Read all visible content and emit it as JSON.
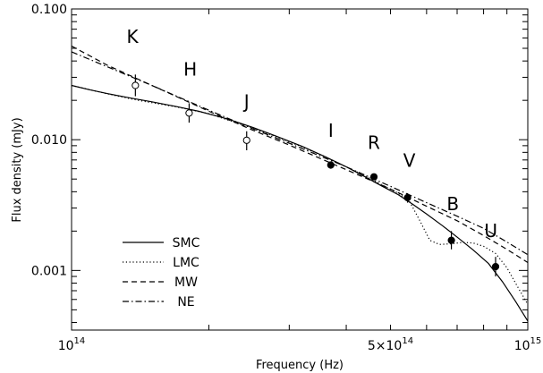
{
  "chart_data": {
    "type": "line",
    "title": "",
    "xlabel": "Frequency (Hz)",
    "ylabel": "Flux density (mJy)",
    "x_scale": "log",
    "y_scale": "log",
    "xlim": [
      100000000000000.0,
      1000000000000000.0
    ],
    "ylim": [
      0.00035,
      0.1
    ],
    "x_ticks": [
      {
        "value": 100000000000000.0,
        "base": "10",
        "exp": "14"
      },
      {
        "value": 500000000000000.0,
        "base": "5×10",
        "exp": "14"
      },
      {
        "value": 1000000000000000.0,
        "base": "10",
        "exp": "15"
      }
    ],
    "y_ticks": [
      {
        "value": 0.001,
        "label": "0.001"
      },
      {
        "value": 0.01,
        "label": "0.010"
      },
      {
        "value": 0.1,
        "label": "0.100"
      }
    ],
    "grid": false,
    "legend": {
      "placement": "bottom-left",
      "entries": [
        {
          "name": "SMC",
          "style": "solid"
        },
        {
          "name": "LMC",
          "style": "dotted"
        },
        {
          "name": "MW",
          "style": "dashed"
        },
        {
          "name": "NE",
          "style": "dashdot"
        }
      ]
    },
    "band_labels": [
      {
        "text": "K",
        "nu": 136000000000000.0,
        "flux": 0.055
      },
      {
        "text": "H",
        "nu": 182000000000000.0,
        "flux": 0.031
      },
      {
        "text": "J",
        "nu": 242000000000000.0,
        "flux": 0.0175
      },
      {
        "text": "I",
        "nu": 370000000000000.0,
        "flux": 0.0105
      },
      {
        "text": "R",
        "nu": 460000000000000.0,
        "flux": 0.0085
      },
      {
        "text": "V",
        "nu": 550000000000000.0,
        "flux": 0.0062
      },
      {
        "text": "B",
        "nu": 685000000000000.0,
        "flux": 0.0029
      },
      {
        "text": "U",
        "nu": 830000000000000.0,
        "flux": 0.0018
      }
    ],
    "observations": [
      {
        "band": "K",
        "nu": 138000000000000.0,
        "flux": 0.026,
        "err_low": 0.0215,
        "err_high": 0.0315,
        "filled": false
      },
      {
        "band": "H",
        "nu": 181000000000000.0,
        "flux": 0.016,
        "err_low": 0.0135,
        "err_high": 0.019,
        "filled": false
      },
      {
        "band": "J",
        "nu": 242000000000000.0,
        "flux": 0.0099,
        "err_low": 0.0083,
        "err_high": 0.0116,
        "filled": false
      },
      {
        "band": "I",
        "nu": 370000000000000.0,
        "flux": 0.0064,
        "err_low": 0.006,
        "err_high": 0.0068,
        "filled": true
      },
      {
        "band": "R",
        "nu": 460000000000000.0,
        "flux": 0.0052,
        "err_low": 0.0049,
        "err_high": 0.0055,
        "filled": true
      },
      {
        "band": "V",
        "nu": 545000000000000.0,
        "flux": 0.0036,
        "err_low": 0.0033,
        "err_high": 0.0039,
        "filled": true
      },
      {
        "band": "B",
        "nu": 680000000000000.0,
        "flux": 0.0017,
        "err_low": 0.00145,
        "err_high": 0.002,
        "filled": true
      },
      {
        "band": "U",
        "nu": 850000000000000.0,
        "flux": 0.00107,
        "err_low": 0.0009,
        "err_high": 0.00127,
        "filled": true
      }
    ],
    "series": [
      {
        "name": "SMC",
        "style": "solid",
        "x": [
          100000000000000.0,
          110000000000000.0,
          120000000000000.0,
          135000000000000.0,
          150000000000000.0,
          170000000000000.0,
          190000000000000.0,
          220000000000000.0,
          250000000000000.0,
          280000000000000.0,
          320000000000000.0,
          360000000000000.0,
          400000000000000.0,
          440000000000000.0,
          480000000000000.0,
          520000000000000.0,
          560000000000000.0,
          600000000000000.0,
          650000000000000.0,
          700000000000000.0,
          760000000000000.0,
          820000000000000.0,
          880000000000000.0,
          940000000000000.0,
          1000000000000000.0
        ],
        "y": [
          0.026,
          0.024,
          0.0225,
          0.0208,
          0.0195,
          0.0179,
          0.0165,
          0.0144,
          0.0124,
          0.0107,
          0.0089,
          0.0074,
          0.0062,
          0.0052,
          0.0044,
          0.0038,
          0.0032,
          0.0027,
          0.0022,
          0.0018,
          0.00143,
          0.00113,
          0.00082,
          0.00058,
          0.00041
        ]
      },
      {
        "name": "LMC",
        "style": "dotted",
        "x": [
          100000000000000.0,
          120000000000000.0,
          140000000000000.0,
          170000000000000.0,
          200000000000000.0,
          240000000000000.0,
          280000000000000.0,
          320000000000000.0,
          360000000000000.0,
          400000000000000.0,
          440000000000000.0,
          480000000000000.0,
          520000000000000.0,
          550000000000000.0,
          580000000000000.0,
          610000000000000.0,
          640000000000000.0,
          680000000000000.0,
          720000000000000.0,
          760000000000000.0,
          800000000000000.0,
          850000000000000.0,
          900000000000000.0,
          950000000000000.0,
          1000000000000000.0
        ],
        "y": [
          0.026,
          0.0224,
          0.02,
          0.0178,
          0.0158,
          0.0128,
          0.0106,
          0.0088,
          0.0074,
          0.0062,
          0.0053,
          0.0045,
          0.0039,
          0.0034,
          0.0024,
          0.0017,
          0.00158,
          0.0016,
          0.00164,
          0.00162,
          0.00153,
          0.00135,
          0.00105,
          0.00075,
          0.00055
        ]
      },
      {
        "name": "MW",
        "style": "dashed",
        "x": [
          100000000000000.0,
          120000000000000.0,
          150000000000000.0,
          200000000000000.0,
          250000000000000.0,
          300000000000000.0,
          400000000000000.0,
          500000000000000.0,
          600000000000000.0,
          700000000000000.0,
          800000000000000.0,
          900000000000000.0,
          1000000000000000.0
        ],
        "y": [
          0.052,
          0.037,
          0.026,
          0.0165,
          0.0118,
          0.0091,
          0.0059,
          0.0042,
          0.0031,
          0.0024,
          0.00185,
          0.00145,
          0.00115
        ]
      },
      {
        "name": "NE",
        "style": "dashdot",
        "x": [
          100000000000000.0,
          120000000000000.0,
          150000000000000.0,
          200000000000000.0,
          250000000000000.0,
          300000000000000.0,
          400000000000000.0,
          500000000000000.0,
          600000000000000.0,
          700000000000000.0,
          800000000000000.0,
          900000000000000.0,
          1000000000000000.0
        ],
        "y": [
          0.047,
          0.036,
          0.026,
          0.0168,
          0.0121,
          0.0094,
          0.0062,
          0.0044,
          0.0033,
          0.0026,
          0.0021,
          0.00165,
          0.00132
        ]
      }
    ]
  }
}
